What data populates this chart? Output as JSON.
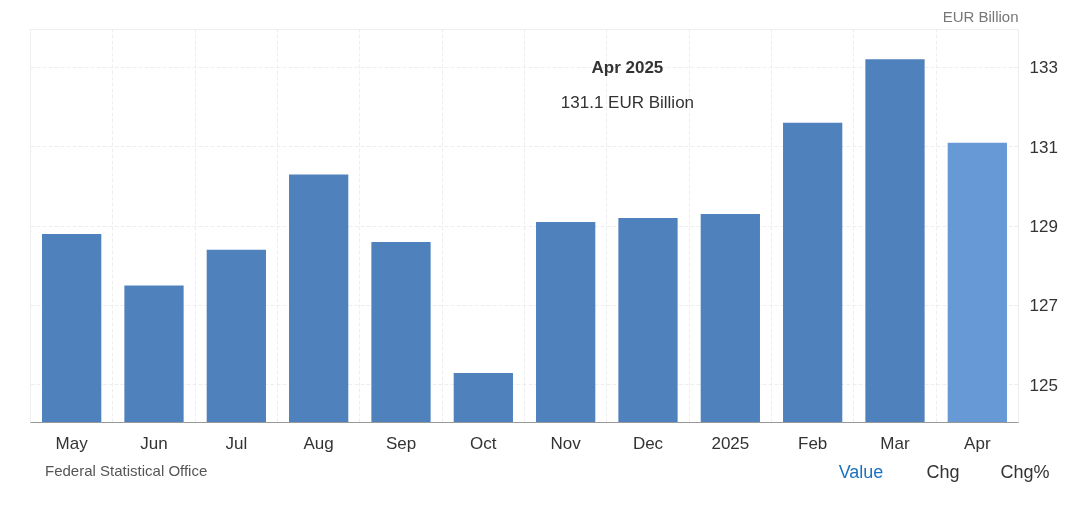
{
  "chart_data": {
    "type": "bar",
    "ylabel": "EUR Billion",
    "categories": [
      "May",
      "Jun",
      "Jul",
      "Aug",
      "Sep",
      "Oct",
      "Nov",
      "Dec",
      "2025",
      "Feb",
      "Mar",
      "Apr"
    ],
    "values": [
      128.8,
      127.5,
      128.4,
      130.3,
      128.6,
      125.3,
      129.1,
      129.2,
      129.3,
      131.6,
      133.2,
      131.1
    ],
    "colors": [
      "#4f81bd",
      "#4f81bd",
      "#4f81bd",
      "#4f81bd",
      "#4f81bd",
      "#4f81bd",
      "#4f81bd",
      "#4f81bd",
      "#4f81bd",
      "#4f81bd",
      "#4f81bd",
      "#6699d6"
    ],
    "ylim": [
      124.05,
      133.95
    ],
    "yticks": [
      125,
      127,
      129,
      131,
      133
    ],
    "grid": true,
    "annotations": [
      "Apr 2025",
      "131.1 EUR Billion",
      "Federal Statistical Office",
      "Value",
      "Chg",
      "Chg%"
    ]
  }
}
